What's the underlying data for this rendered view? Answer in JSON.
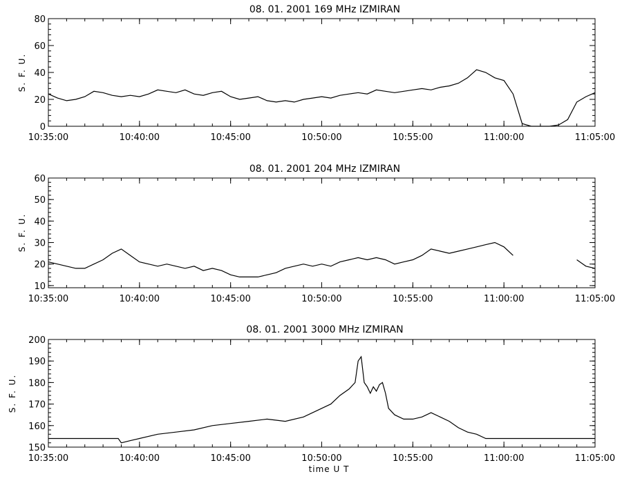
{
  "chart_data": [
    {
      "type": "line",
      "title": "08.  01.  2001    169 MHz    IZMIRAN",
      "ylabel": "S. F. U.",
      "xlabel": "",
      "xlim": [
        "10:35:00",
        "11:05:00"
      ],
      "ylim": [
        0,
        80
      ],
      "x_ticks": [
        "10:35:00",
        "10:40:00",
        "10:45:00",
        "10:50:00",
        "10:55:00",
        "11:00:00",
        "11:05:00"
      ],
      "y_ticks": [
        0,
        20,
        40,
        60,
        80
      ],
      "grid": false,
      "series": [
        {
          "x": [
            "10:35:00",
            "10:35:30",
            "10:36:00",
            "10:36:30",
            "10:37:00",
            "10:37:30",
            "10:38:00",
            "10:38:30",
            "10:39:00",
            "10:39:30",
            "10:40:00",
            "10:40:30",
            "10:41:00",
            "10:41:30",
            "10:42:00",
            "10:42:30",
            "10:43:00",
            "10:43:30",
            "10:44:00",
            "10:44:30",
            "10:45:00",
            "10:45:30",
            "10:46:00",
            "10:46:30",
            "10:47:00",
            "10:47:30",
            "10:48:00",
            "10:48:30",
            "10:49:00",
            "10:49:30",
            "10:50:00",
            "10:50:30",
            "10:51:00",
            "10:51:30",
            "10:52:00",
            "10:52:30",
            "10:53:00",
            "10:53:30",
            "10:54:00",
            "10:54:30",
            "10:55:00",
            "10:55:30",
            "10:56:00",
            "10:56:30",
            "10:57:00",
            "10:57:30",
            "10:58:00",
            "10:58:30",
            "10:59:00",
            "10:59:30",
            "11:00:00",
            "11:00:30",
            "11:01:00",
            "11:01:30",
            "11:02:00",
            "11:02:30",
            "11:03:00",
            "11:03:30",
            "11:04:00",
            "11:04:30",
            "11:05:00"
          ],
          "y": [
            24,
            21,
            19,
            20,
            22,
            26,
            25,
            23,
            22,
            23,
            22,
            24,
            27,
            26,
            25,
            27,
            24,
            23,
            25,
            26,
            22,
            20,
            21,
            22,
            19,
            18,
            19,
            18,
            20,
            21,
            22,
            21,
            23,
            24,
            25,
            24,
            27,
            26,
            25,
            26,
            27,
            28,
            27,
            29,
            30,
            32,
            36,
            42,
            40,
            36,
            34,
            24,
            2,
            0,
            0,
            0,
            1,
            5,
            18,
            22,
            25
          ]
        }
      ]
    },
    {
      "type": "line",
      "title": "08.  01.  2001    204 MHz    IZMIRAN",
      "ylabel": "S. F. U.",
      "xlabel": "",
      "xlim": [
        "10:35:00",
        "11:05:00"
      ],
      "ylim": [
        9,
        60
      ],
      "x_ticks": [
        "10:35:00",
        "10:40:00",
        "10:45:00",
        "10:50:00",
        "10:55:00",
        "11:00:00",
        "11:05:00"
      ],
      "y_ticks": [
        10,
        20,
        30,
        40,
        50,
        60
      ],
      "grid": false,
      "series": [
        {
          "x": [
            "10:35:00",
            "10:35:30",
            "10:36:00",
            "10:36:30",
            "10:37:00",
            "10:37:30",
            "10:38:00",
            "10:38:30",
            "10:39:00",
            "10:39:30",
            "10:40:00",
            "10:40:30",
            "10:41:00",
            "10:41:30",
            "10:42:00",
            "10:42:30",
            "10:43:00",
            "10:43:30",
            "10:44:00",
            "10:44:30",
            "10:45:00",
            "10:45:30",
            "10:46:00",
            "10:46:30",
            "10:47:00",
            "10:47:30",
            "10:48:00",
            "10:48:30",
            "10:49:00",
            "10:49:30",
            "10:50:00",
            "10:50:30",
            "10:51:00",
            "10:51:30",
            "10:52:00",
            "10:52:30",
            "10:53:00",
            "10:53:30",
            "10:54:00",
            "10:54:30",
            "10:55:00",
            "10:55:30",
            "10:56:00",
            "10:56:30",
            "10:57:00",
            "10:57:30",
            "10:58:00",
            "10:58:30",
            "10:59:00",
            "10:59:30",
            "11:00:00",
            "11:00:30",
            "11:01:00",
            "11:01:30",
            "11:02:00",
            "11:02:30",
            "11:03:00",
            "11:03:30",
            "11:04:00",
            "11:04:30",
            "11:05:00"
          ],
          "y": [
            21,
            20,
            19,
            18,
            18,
            20,
            22,
            25,
            27,
            24,
            21,
            20,
            19,
            20,
            19,
            18,
            19,
            17,
            18,
            17,
            15,
            14,
            14,
            14,
            15,
            16,
            18,
            19,
            20,
            19,
            20,
            19,
            21,
            22,
            23,
            22,
            23,
            22,
            20,
            21,
            22,
            24,
            27,
            26,
            25,
            26,
            27,
            28,
            29,
            30,
            28,
            24,
            null,
            null,
            null,
            null,
            null,
            null,
            22,
            19,
            18
          ]
        }
      ]
    },
    {
      "type": "line",
      "title": "08.  01.  2001    3000 MHz    IZMIRAN",
      "ylabel": "S. F. U.",
      "xlabel": "time   U T",
      "xlim": [
        "10:35:00",
        "11:05:00"
      ],
      "ylim": [
        150,
        200
      ],
      "x_ticks": [
        "10:35:00",
        "10:40:00",
        "10:45:00",
        "10:50:00",
        "10:55:00",
        "11:00:00",
        "11:05:00"
      ],
      "y_ticks": [
        150,
        160,
        170,
        180,
        190,
        200
      ],
      "grid": false,
      "series": [
        {
          "x": [
            "10:35:00",
            "10:36:00",
            "10:37:00",
            "10:38:00",
            "10:38:50",
            "10:39:00",
            "10:39:30",
            "10:40:00",
            "10:41:00",
            "10:42:00",
            "10:43:00",
            "10:44:00",
            "10:45:00",
            "10:46:00",
            "10:47:00",
            "10:48:00",
            "10:49:00",
            "10:49:30",
            "10:50:00",
            "10:50:30",
            "10:51:00",
            "10:51:30",
            "10:51:50",
            "10:52:00",
            "10:52:10",
            "10:52:20",
            "10:52:30",
            "10:52:40",
            "10:52:50",
            "10:53:00",
            "10:53:10",
            "10:53:20",
            "10:53:30",
            "10:53:40",
            "10:54:00",
            "10:54:30",
            "10:55:00",
            "10:55:30",
            "10:56:00",
            "10:56:30",
            "10:57:00",
            "10:57:30",
            "10:58:00",
            "10:58:30",
            "10:59:00",
            "11:00:00",
            "11:01:00",
            "11:02:00",
            "11:03:00",
            "11:04:00",
            "11:05:00"
          ],
          "y": [
            154,
            154,
            154,
            154,
            154,
            152,
            153,
            154,
            156,
            157,
            158,
            160,
            161,
            162,
            163,
            162,
            164,
            166,
            168,
            170,
            174,
            177,
            180,
            190,
            192,
            180,
            178,
            175,
            178,
            176,
            179,
            180,
            175,
            168,
            165,
            163,
            163,
            164,
            166,
            164,
            162,
            159,
            157,
            156,
            154,
            154,
            154,
            154,
            154,
            154,
            154
          ]
        }
      ]
    }
  ]
}
